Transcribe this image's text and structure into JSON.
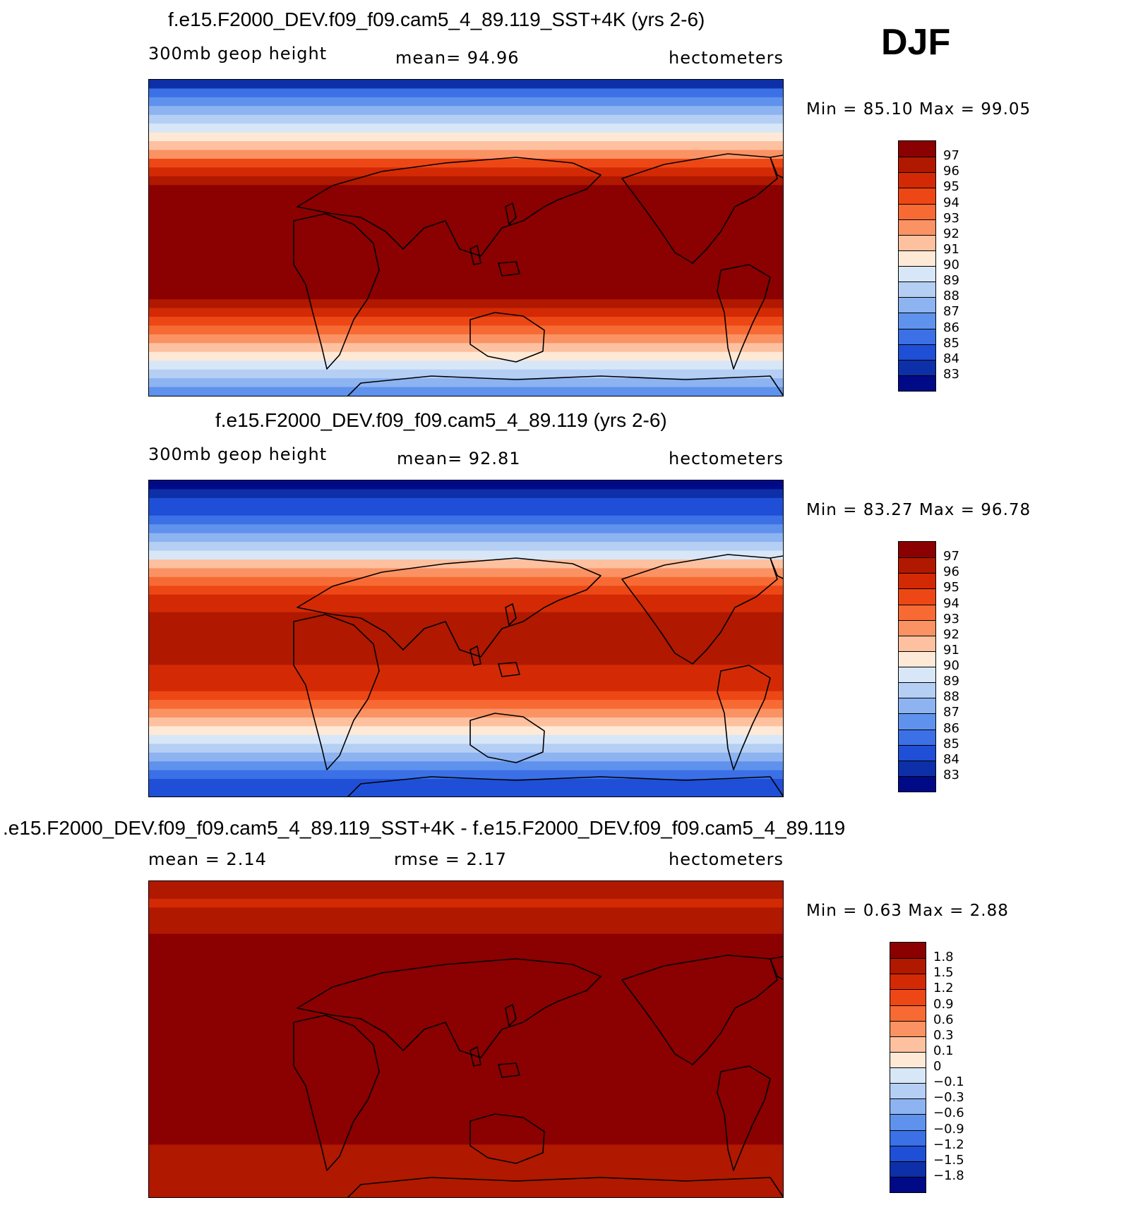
{
  "season": "DJF",
  "panels": [
    {
      "title": "f.e15.F2000_DEV.f09_f09.cam5_4_89.119_SST+4K (yrs 2-6)",
      "left_label": "300mb  geop  height",
      "center_label": "mean=   94.96",
      "right_label": "hectometers",
      "minmax": "Min =    85.10  Max =    99.05",
      "colorbar_labels": [
        "97",
        "96",
        "95",
        "94",
        "93",
        "92",
        "91",
        "90",
        "89",
        "88",
        "87",
        "86",
        "85",
        "84",
        "83"
      ],
      "colors": [
        "#8b0000",
        "#b01800",
        "#d32a05",
        "#ed4716",
        "#f76a33",
        "#fb9263",
        "#fdc1a0",
        "#fde9d6",
        "#d8e7f8",
        "#b5cff4",
        "#8db3f1",
        "#5f92ec",
        "#3b70e6",
        "#1f4fd6",
        "#0d30a8",
        "#000a87"
      ],
      "map_profile": [
        14,
        12,
        11,
        10,
        9,
        8,
        7,
        6,
        5,
        3,
        2,
        1,
        0,
        0,
        0,
        0,
        0,
        0,
        0,
        0,
        0,
        0,
        0,
        0,
        0,
        1,
        2,
        3,
        4,
        5,
        6,
        7,
        8,
        9,
        10,
        11
      ]
    },
    {
      "title": "f.e15.F2000_DEV.f09_f09.cam5_4_89.119 (yrs 2-6)",
      "left_label": "300mb  geop  height",
      "center_label": "mean=   92.81",
      "right_label": "hectometers",
      "minmax": "Min =    83.27  Max =    96.78",
      "colorbar_labels": [
        "97",
        "96",
        "95",
        "94",
        "93",
        "92",
        "91",
        "90",
        "89",
        "88",
        "87",
        "86",
        "85",
        "84",
        "83"
      ],
      "colors": [
        "#8b0000",
        "#b01800",
        "#d32a05",
        "#ed4716",
        "#f76a33",
        "#fb9263",
        "#fdc1a0",
        "#fde9d6",
        "#d8e7f8",
        "#b5cff4",
        "#8db3f1",
        "#5f92ec",
        "#3b70e6",
        "#1f4fd6",
        "#0d30a8",
        "#000a87"
      ],
      "map_profile": [
        15,
        14,
        13,
        13,
        12,
        11,
        10,
        9,
        8,
        6,
        5,
        4,
        3,
        2,
        2,
        1,
        1,
        1,
        1,
        1,
        1,
        2,
        2,
        2,
        3,
        4,
        5,
        6,
        7,
        8,
        9,
        10,
        11,
        12,
        13,
        13
      ]
    },
    {
      "title": ".e15.F2000_DEV.f09_f09.cam5_4_89.119_SST+4K - f.e15.F2000_DEV.f09_f09.cam5_4_89.119",
      "left_label": "mean =      2.14",
      "center_label": "rmse =      2.17",
      "right_label": "hectometers",
      "minmax": "Min =      0.63  Max =      2.88",
      "colorbar_labels": [
        "1.8",
        "1.5",
        "1.2",
        "0.9",
        "0.6",
        "0.3",
        "0.1",
        "0",
        "−0.1",
        "−0.3",
        "−0.6",
        "−0.9",
        "−1.2",
        "−1.5",
        "−1.8"
      ],
      "colors": [
        "#8b0000",
        "#b01800",
        "#d32a05",
        "#ed4716",
        "#f76a33",
        "#fb9263",
        "#fdc1a0",
        "#fde9d6",
        "#d8e7f8",
        "#b5cff4",
        "#8db3f1",
        "#5f92ec",
        "#3b70e6",
        "#1f4fd6",
        "#0d30a8",
        "#000a87"
      ],
      "map_profile": [
        1,
        1,
        2,
        1,
        1,
        1,
        0,
        0,
        0,
        0,
        0,
        0,
        0,
        0,
        0,
        0,
        0,
        0,
        0,
        0,
        0,
        0,
        0,
        0,
        0,
        0,
        0,
        0,
        0,
        0,
        1,
        1,
        1,
        1,
        1,
        1
      ]
    }
  ]
}
